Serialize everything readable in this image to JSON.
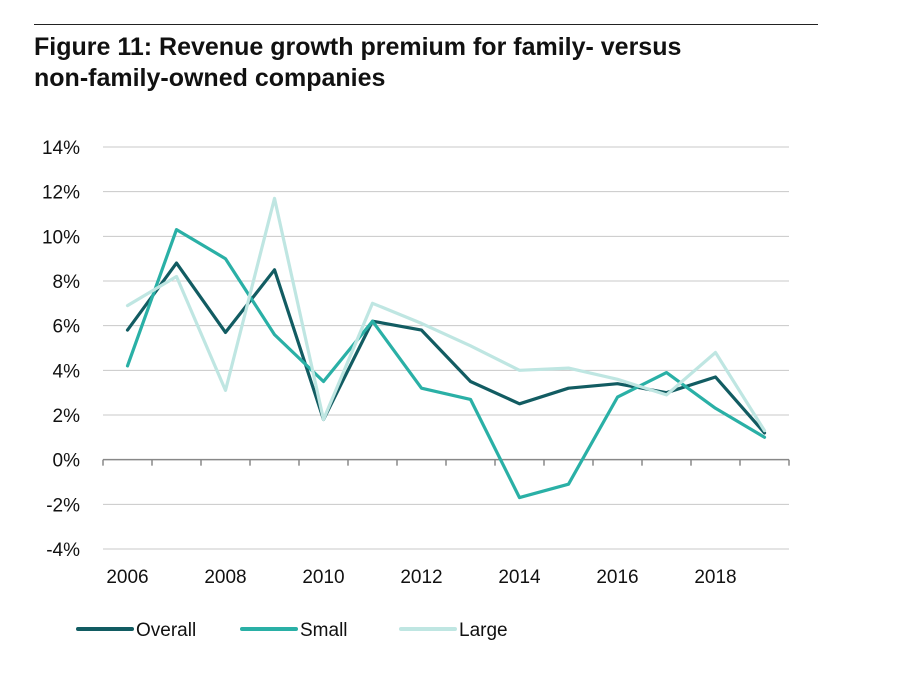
{
  "title_lines": [
    "Figure 11: Revenue growth premium for family- versus",
    "non-family-owned companies"
  ],
  "colors": {
    "Overall": "#125c62",
    "Small": "#2ab0a6",
    "Large": "#bfe6e2",
    "grid": "#c8c8c8",
    "axis": "#888888"
  },
  "chart_data": {
    "type": "line",
    "title": "Figure 11: Revenue growth premium for family- versus non-family-owned companies",
    "xlabel": "",
    "ylabel": "",
    "x": [
      2006,
      2007,
      2008,
      2009,
      2010,
      2011,
      2012,
      2013,
      2014,
      2015,
      2016,
      2017,
      2018,
      2019
    ],
    "x_ticks": [
      2006,
      2008,
      2010,
      2012,
      2014,
      2016,
      2018
    ],
    "x_tick_labels": [
      "2006",
      "2008",
      "2010",
      "2012",
      "2014",
      "2016",
      "2018"
    ],
    "ylim": [
      -4,
      14
    ],
    "y_ticks": [
      14,
      12,
      10,
      8,
      6,
      4,
      2,
      0,
      -2,
      -4
    ],
    "y_tick_labels": [
      "14%",
      "12%",
      "10%",
      "8%",
      "6%",
      "4%",
      "2%",
      "0%",
      "-2%",
      "-4%"
    ],
    "grid": true,
    "legend_position": "bottom",
    "series": [
      {
        "name": "Overall",
        "values": [
          5.8,
          8.8,
          5.7,
          8.5,
          1.8,
          6.2,
          5.8,
          3.5,
          2.5,
          3.2,
          3.4,
          3.0,
          3.7,
          1.2
        ]
      },
      {
        "name": "Small",
        "values": [
          4.2,
          10.3,
          9.0,
          5.6,
          3.5,
          6.2,
          3.2,
          2.7,
          -1.7,
          -1.1,
          2.8,
          3.9,
          2.3,
          1.0
        ]
      },
      {
        "name": "Large",
        "values": [
          6.9,
          8.2,
          3.1,
          11.7,
          1.8,
          7.0,
          6.1,
          5.1,
          4.0,
          4.1,
          3.6,
          2.9,
          4.8,
          1.3
        ]
      }
    ]
  }
}
